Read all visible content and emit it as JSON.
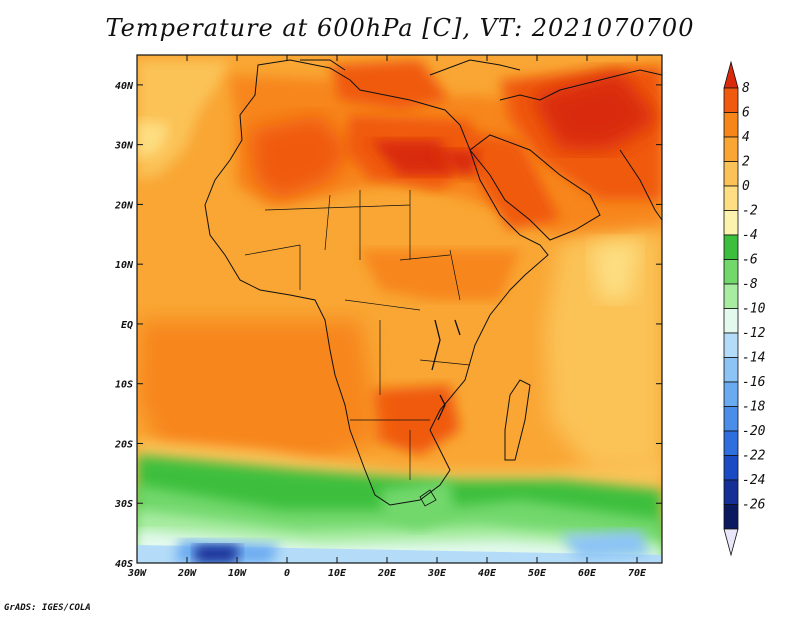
{
  "title": "Temperature at 600hPa [C], VT: 2021070700",
  "credit": "GrADS: IGES/COLA",
  "map": {
    "lon_labels": [
      "30W",
      "20W",
      "10W",
      "0",
      "10E",
      "20E",
      "30E",
      "40E",
      "50E",
      "60E",
      "70E"
    ],
    "lat_labels": [
      "40N",
      "30N",
      "20N",
      "10N",
      "EQ",
      "10S",
      "20S",
      "30S",
      "40S"
    ],
    "lon_range": [
      -30,
      75
    ],
    "lat_range": [
      -40,
      45
    ]
  },
  "colorbar": {
    "labels": [
      "8",
      "6",
      "4",
      "2",
      "0",
      "-2",
      "-4",
      "-6",
      "-8",
      "-10",
      "-12",
      "-14",
      "-16",
      "-18",
      "-20",
      "-22",
      "-24",
      "-26"
    ],
    "colors": [
      "#d92b0c",
      "#f05a0f",
      "#f7861a",
      "#f9a634",
      "#fbc257",
      "#fdde82",
      "#fbf3ae",
      "#3cbf3c",
      "#72d86c",
      "#a8eca2",
      "#e3f9ee",
      "#b4dcf8",
      "#8cc4f5",
      "#6aaaf0",
      "#4a8eea",
      "#2e6edd",
      "#1b4bc4",
      "#152f96",
      "#0b1a5e",
      "#e8e6f8"
    ]
  }
}
